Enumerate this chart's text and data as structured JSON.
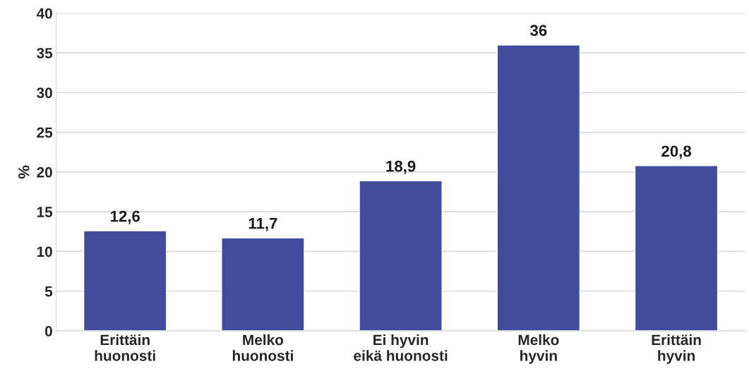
{
  "chart_data": {
    "type": "bar",
    "categories": [
      "Erittäin\nhuonosti",
      "Melko\nhuonosti",
      "Ei hyvin\neikä huonosti",
      "Melko\nhyvin",
      "Erittäin\nhyvin"
    ],
    "values": [
      12.6,
      11.7,
      18.9,
      36,
      20.8
    ],
    "value_labels": [
      "12,6",
      "11,7",
      "18,9",
      "36",
      "20,8"
    ],
    "color": "#434c9c",
    "ylabel": "%",
    "ylim": [
      0,
      40
    ],
    "yticks": [
      0,
      5,
      10,
      15,
      20,
      25,
      30,
      35,
      40
    ],
    "grid": "y",
    "legend": false
  }
}
